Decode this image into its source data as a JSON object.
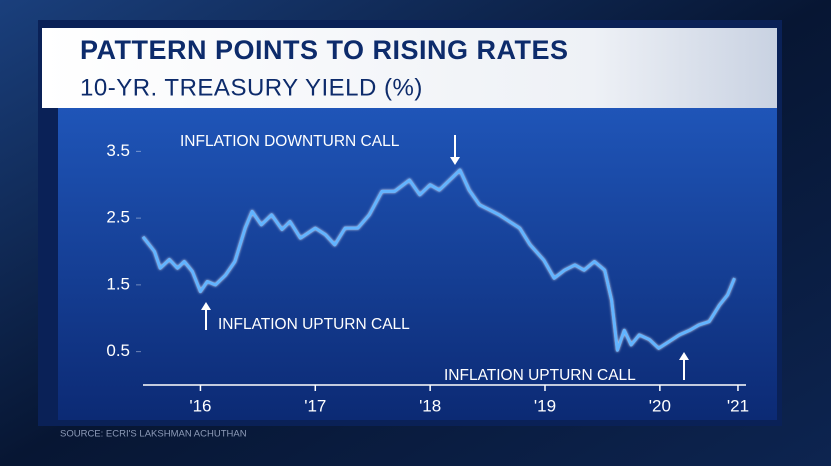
{
  "chart_data": {
    "type": "line",
    "title": "PATTERN POINTS TO RISING RATES",
    "subtitle": "10-YR. TREASURY YIELD (%)",
    "source": "SOURCE: ECRI'S LAKSHMAN ACHUTHAN",
    "annotations": [
      "INFLATION DOWNTURN CALL",
      "INFLATION UPTURN CALL",
      "INFLATION UPTURN CALL"
    ],
    "color": "#62b4ff",
    "x": [
      2015.5,
      2015.6,
      2015.65,
      2015.73,
      2015.8,
      2015.86,
      2015.93,
      2016.0,
      2016.06,
      2016.13,
      2016.22,
      2016.3,
      2016.39,
      2016.45,
      2016.53,
      2016.62,
      2016.71,
      2016.78,
      2016.87,
      2017.0,
      2017.09,
      2017.17,
      2017.26,
      2017.37,
      2017.47,
      2017.58,
      2017.69,
      2017.82,
      2017.91,
      2018.0,
      2018.08,
      2018.17,
      2018.26,
      2018.34,
      2018.43,
      2018.52,
      2018.6,
      2018.69,
      2018.78,
      2018.87,
      2018.99,
      2019.08,
      2019.17,
      2019.26,
      2019.34,
      2019.43,
      2019.52,
      2019.58,
      2019.63,
      2019.69,
      2019.75,
      2019.82,
      2019.91,
      2019.99,
      2020.08,
      2020.17,
      2020.26,
      2020.34,
      2020.43,
      2020.52,
      2020.59,
      2020.65
    ],
    "values": [
      2.22,
      2.0,
      1.75,
      1.88,
      1.75,
      1.85,
      1.7,
      1.4,
      1.55,
      1.5,
      1.65,
      1.85,
      2.35,
      2.6,
      2.4,
      2.55,
      2.33,
      2.45,
      2.2,
      2.35,
      2.25,
      2.1,
      2.35,
      2.35,
      2.55,
      2.9,
      2.9,
      3.07,
      2.85,
      3.0,
      2.92,
      3.07,
      3.22,
      2.92,
      2.7,
      2.62,
      2.55,
      2.45,
      2.35,
      2.1,
      1.87,
      1.6,
      1.72,
      1.8,
      1.72,
      1.85,
      1.72,
      1.27,
      0.52,
      0.82,
      0.6,
      0.75,
      0.68,
      0.55,
      0.65,
      0.75,
      0.82,
      0.9,
      0.95,
      1.2,
      1.35,
      1.6
    ],
    "xlim": [
      2015.5,
      2020.75
    ],
    "xticks": [
      {
        "value": 2016,
        "label": "'16"
      },
      {
        "value": 2017,
        "label": "'17"
      },
      {
        "value": 2018,
        "label": "'18"
      },
      {
        "value": 2019,
        "label": "'19"
      },
      {
        "value": 2020,
        "label": "'20"
      },
      {
        "value": 2020.68,
        "label": "'21"
      }
    ],
    "ylim": [
      0,
      4
    ],
    "yticks": [
      0.5,
      1.5,
      2.5,
      3.5
    ]
  }
}
